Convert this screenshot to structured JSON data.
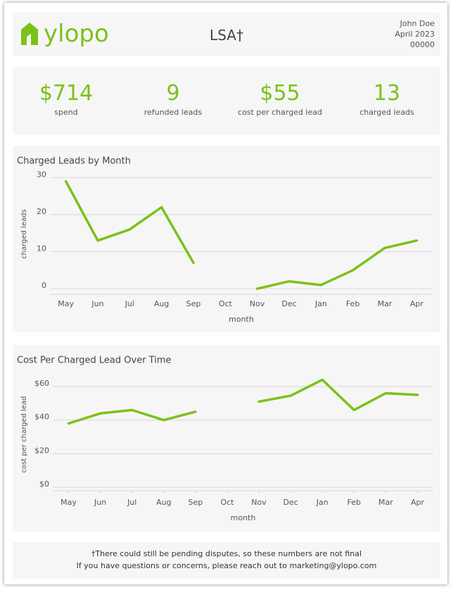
{
  "header": {
    "logo": "ylopo",
    "title": "LSA†",
    "name": "John Doe",
    "date": "April 2023",
    "id": "00000"
  },
  "kpis": [
    {
      "value": "$714",
      "label": "spend"
    },
    {
      "value": "9",
      "label": "refunded leads"
    },
    {
      "value": "$55",
      "label": "cost per charged lead"
    },
    {
      "value": "13",
      "label": "charged leads"
    }
  ],
  "chart_data": [
    {
      "type": "line",
      "title": "Charged Leads by Month",
      "x_label": "month",
      "y_label": "charged leads",
      "categories": [
        "May",
        "Jun",
        "Jul",
        "Aug",
        "Sep",
        "Oct",
        "Nov",
        "Dec",
        "Jan",
        "Feb",
        "Mar",
        "Apr"
      ],
      "values": [
        29,
        13,
        16,
        22,
        7,
        null,
        0,
        2,
        1,
        5,
        11,
        13
      ],
      "color": "#7cc118",
      "ylim": [
        -1.5,
        31
      ],
      "yticks": [
        0,
        10,
        20,
        30
      ],
      "grid": true
    },
    {
      "type": "line",
      "title": "Cost Per Charged Lead Over Time",
      "x_label": "month",
      "y_label": "cost per charged lead",
      "categories": [
        "May",
        "Jun",
        "Jul",
        "Aug",
        "Sep",
        "Oct",
        "Nov",
        "Dec",
        "Jan",
        "Feb",
        "Mar",
        "Apr"
      ],
      "values": [
        38,
        44,
        46,
        40,
        45,
        null,
        51,
        54.5,
        64,
        46,
        56,
        55
      ],
      "color": "#7cc118",
      "ylim": [
        -2,
        65
      ],
      "yticks": [
        {
          "value": 0,
          "label": "$0"
        },
        {
          "value": 20,
          "label": "$20"
        },
        {
          "value": 40,
          "label": "$40"
        },
        {
          "value": 60,
          "label": "$60"
        }
      ],
      "grid": true
    }
  ],
  "footer": {
    "line1": "†There could still be pending disputes, so these numbers are not final",
    "line2": "If you have questions or concerns, please reach out to marketing@ylopo.com"
  }
}
